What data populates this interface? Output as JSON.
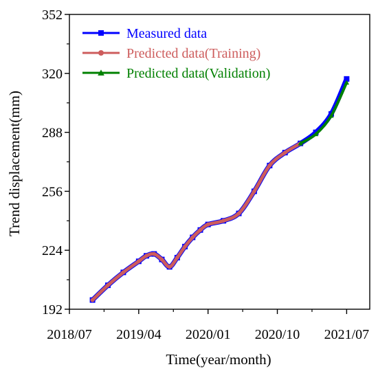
{
  "chart_data": {
    "type": "line",
    "title": "",
    "xlabel": "Time(year/month)",
    "ylabel": "Trend displacement(mm)",
    "x_ticks": [
      "2018/07",
      "2019/04",
      "2020/01",
      "2020/10",
      "2021/07"
    ],
    "y_ticks": [
      192,
      224,
      256,
      288,
      320,
      352
    ],
    "xlim": [
      "2018/07",
      "2021/10"
    ],
    "ylim": [
      192,
      352
    ],
    "grid": false,
    "legend": {
      "placement": "top-left"
    },
    "series": [
      {
        "name": "Measured data",
        "color": "#0000ff",
        "marker": "square",
        "x": [
          "2018/10",
          "2018/12",
          "2019/02",
          "2019/04",
          "2019/05",
          "2019/06",
          "2019/07",
          "2019/08",
          "2019/09",
          "2019/10",
          "2019/11",
          "2019/12",
          "2020/01",
          "2020/03",
          "2020/05",
          "2020/07",
          "2020/09",
          "2020/11",
          "2021/01",
          "2021/03",
          "2021/05",
          "2021/07"
        ],
        "y": [
          197,
          205,
          212,
          218,
          221,
          222,
          219,
          215,
          220,
          226,
          231,
          235,
          238,
          240,
          244,
          256,
          270,
          277,
          282,
          288,
          298,
          317
        ]
      },
      {
        "name": "Predicted data(Training)",
        "color": "#cd5c5c",
        "marker": "circle",
        "x": [
          "2018/10",
          "2018/12",
          "2019/02",
          "2019/04",
          "2019/05",
          "2019/06",
          "2019/07",
          "2019/08",
          "2019/09",
          "2019/10",
          "2019/11",
          "2019/12",
          "2020/01",
          "2020/03",
          "2020/05",
          "2020/07",
          "2020/09",
          "2020/11",
          "2021/01"
        ],
        "y": [
          197,
          205,
          212,
          218,
          221,
          222,
          219,
          215,
          220,
          226,
          231,
          235,
          238,
          240,
          244,
          256,
          270,
          277,
          282
        ]
      },
      {
        "name": "Predicted data(Validation)",
        "color": "#008000",
        "marker": "triangle",
        "x": [
          "2021/01",
          "2021/03",
          "2021/05",
          "2021/07"
        ],
        "y": [
          282,
          287,
          297,
          315
        ]
      }
    ]
  }
}
